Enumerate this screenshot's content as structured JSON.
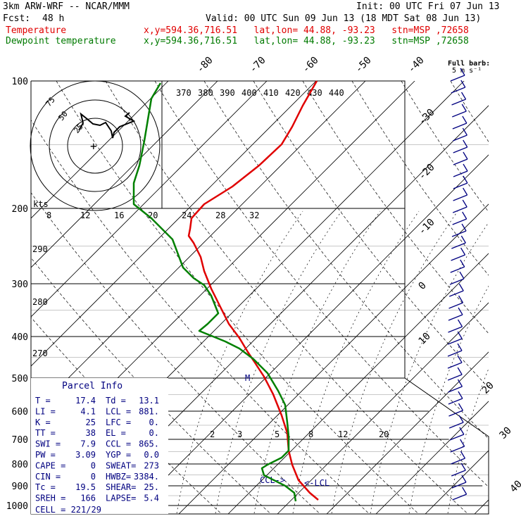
{
  "header": {
    "model": "3km ARW-WRF -- NCAR/MMM",
    "init": "Init: 00 UTC Fri 07 Jun 13",
    "fcst_label": "Fcst:",
    "fcst_value": "48 h",
    "valid": "Valid: 00 UTC Sun 09 Jun 13 (18 MDT Sat 08 Jun 13)",
    "temp_label": "Temperature",
    "temp_loc": "x,y=594.36,716.51   lat,lon= 44.88, -93.23   stn=MSP ,72658",
    "dew_label": "Dewpoint temperature",
    "dew_loc": "x,y=594.36,716.51   lat,lon= 44.88, -93.23   stn=MSP ,72658"
  },
  "colors": {
    "temperature": "#e00000",
    "dewpoint": "#008000",
    "info": "#000080",
    "wind": "#000080"
  },
  "chart_data": {
    "type": "line",
    "pressure_levels": [
      100,
      200,
      300,
      400,
      500,
      600,
      700,
      800,
      900,
      1000
    ],
    "temp_axis_labels": [
      "-80",
      "-70",
      "-60",
      "-50",
      "-40",
      "-30",
      "-20",
      "-10",
      "0",
      "10",
      "20",
      "30",
      "40"
    ],
    "theta_labels": [
      "370",
      "380",
      "390",
      "400",
      "410",
      "420",
      "430",
      "440"
    ],
    "theta_left_labels": [
      "290",
      "280",
      "270"
    ],
    "mixing_ratio_labels": [
      "2",
      "3",
      "5",
      "8",
      "12",
      "20"
    ],
    "hodo_axis_labels": [
      "8",
      "12",
      "16",
      "20",
      "24",
      "28",
      "32"
    ],
    "hodo_unit": "kts",
    "hodo_ring_labels": [
      "75",
      "50",
      "25"
    ],
    "wind_scale_label": "Full barb:",
    "wind_scale_value": "5 m s⁻¹",
    "markers": {
      "ccl": "CCL->",
      "lcl": "<-LCL",
      "m": "M"
    },
    "series": [
      {
        "name": "Temperature",
        "points": [
          [
            1000,
            452,
            710
          ],
          [
            960,
            440,
            700
          ],
          [
            920,
            424,
            682
          ],
          [
            880,
            415,
            660
          ],
          [
            840,
            410,
            640
          ],
          [
            780,
            408,
            615
          ],
          [
            720,
            400,
            590
          ],
          [
            660,
            388,
            560
          ],
          [
            600,
            375,
            535
          ],
          [
            560,
            362,
            515
          ],
          [
            520,
            352,
            500
          ],
          [
            480,
            340,
            480
          ],
          [
            440,
            325,
            460
          ],
          [
            400,
            315,
            440
          ],
          [
            360,
            300,
            410
          ],
          [
            320,
            290,
            385
          ],
          [
            290,
            285,
            365
          ],
          [
            260,
            275,
            345
          ],
          [
            240,
            268,
            335
          ],
          [
            220,
            270,
            325
          ],
          [
            200,
            272,
            310
          ],
          [
            180,
            290,
            290
          ],
          [
            160,
            330,
            265
          ],
          [
            140,
            368,
            235
          ],
          [
            125,
            400,
            205
          ],
          [
            115,
            415,
            180
          ],
          [
            108,
            430,
            150
          ],
          [
            100,
            450,
            115
          ]
        ]
      },
      {
        "name": "Dewpoint temperature",
        "points": [
          [
            1000,
            420,
            712
          ],
          [
            980,
            418,
            700
          ],
          [
            960,
            405,
            690
          ],
          [
            900,
            375,
            675
          ],
          [
            860,
            372,
            665
          ],
          [
            820,
            380,
            660
          ],
          [
            790,
            400,
            650
          ],
          [
            750,
            410,
            640
          ],
          [
            720,
            410,
            620
          ],
          [
            660,
            408,
            600
          ],
          [
            600,
            405,
            575
          ],
          [
            560,
            395,
            555
          ],
          [
            520,
            380,
            530
          ],
          [
            480,
            360,
            510
          ],
          [
            440,
            340,
            495
          ],
          [
            400,
            320,
            485
          ],
          [
            375,
            283,
            470
          ],
          [
            360,
            295,
            460
          ],
          [
            345,
            310,
            445
          ],
          [
            320,
            300,
            420
          ],
          [
            300,
            290,
            405
          ],
          [
            280,
            275,
            395
          ],
          [
            260,
            260,
            380
          ],
          [
            240,
            245,
            340
          ],
          [
            210,
            215,
            310
          ],
          [
            190,
            190,
            290
          ],
          [
            175,
            190,
            260
          ],
          [
            160,
            198,
            235
          ],
          [
            140,
            205,
            200
          ],
          [
            125,
            210,
            170
          ],
          [
            110,
            215,
            140
          ],
          [
            100,
            228,
            118
          ]
        ]
      }
    ]
  },
  "parcel": {
    "title": "Parcel Info",
    "rows": [
      [
        "T  =",
        "17.4",
        "Td =",
        "13.1"
      ],
      [
        "LI =",
        "4.1",
        "LCL =",
        "881."
      ],
      [
        "K  =",
        "25",
        "LFC =",
        "0."
      ],
      [
        "TT =",
        "38",
        "EL  =",
        "0."
      ],
      [
        "SWI =",
        "7.9",
        "CCL =",
        "865."
      ],
      [
        "PW =",
        "3.09",
        "YGP =",
        "0.0"
      ],
      [
        "CAPE =",
        "0",
        "SWEAT=",
        "273"
      ],
      [
        "CIN =",
        "0",
        "HWBZ=",
        "3384."
      ],
      [
        "Tc =",
        "19.5",
        "SHEAR=",
        "25."
      ],
      [
        "SREH =",
        "166",
        "LAPSE=",
        "5.4"
      ]
    ],
    "cell": "CELL = 221/29"
  }
}
